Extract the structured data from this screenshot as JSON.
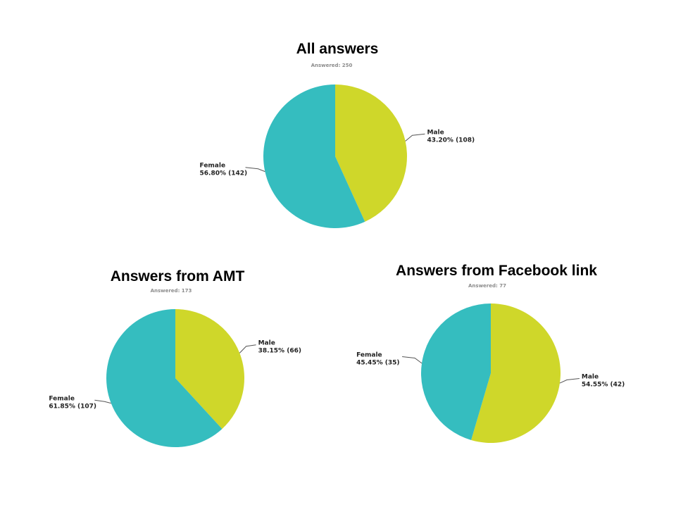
{
  "colors": {
    "male": "#cfd72a",
    "female": "#35bdbf",
    "leader": "#555555"
  },
  "chart_data": [
    {
      "type": "pie",
      "title": "All answers",
      "subtitle": "Answered: 250",
      "slices": [
        {
          "label": "Male",
          "percent": 43.2,
          "count": 108,
          "value_text": "43.20% (108)"
        },
        {
          "label": "Female",
          "percent": 56.8,
          "count": 142,
          "value_text": "56.80% (142)"
        }
      ]
    },
    {
      "type": "pie",
      "title": "Answers from AMT",
      "subtitle": "Answered: 173",
      "slices": [
        {
          "label": "Male",
          "percent": 38.15,
          "count": 66,
          "value_text": "38.15% (66)"
        },
        {
          "label": "Female",
          "percent": 61.85,
          "count": 107,
          "value_text": "61.85% (107)"
        }
      ]
    },
    {
      "type": "pie",
      "title": "Answers from Facebook link",
      "subtitle": "Answered: 77",
      "slices": [
        {
          "label": "Male",
          "percent": 54.55,
          "count": 42,
          "value_text": "54.55% (42)"
        },
        {
          "label": "Female",
          "percent": 45.45,
          "count": 35,
          "value_text": "45.45% (35)"
        }
      ]
    }
  ]
}
